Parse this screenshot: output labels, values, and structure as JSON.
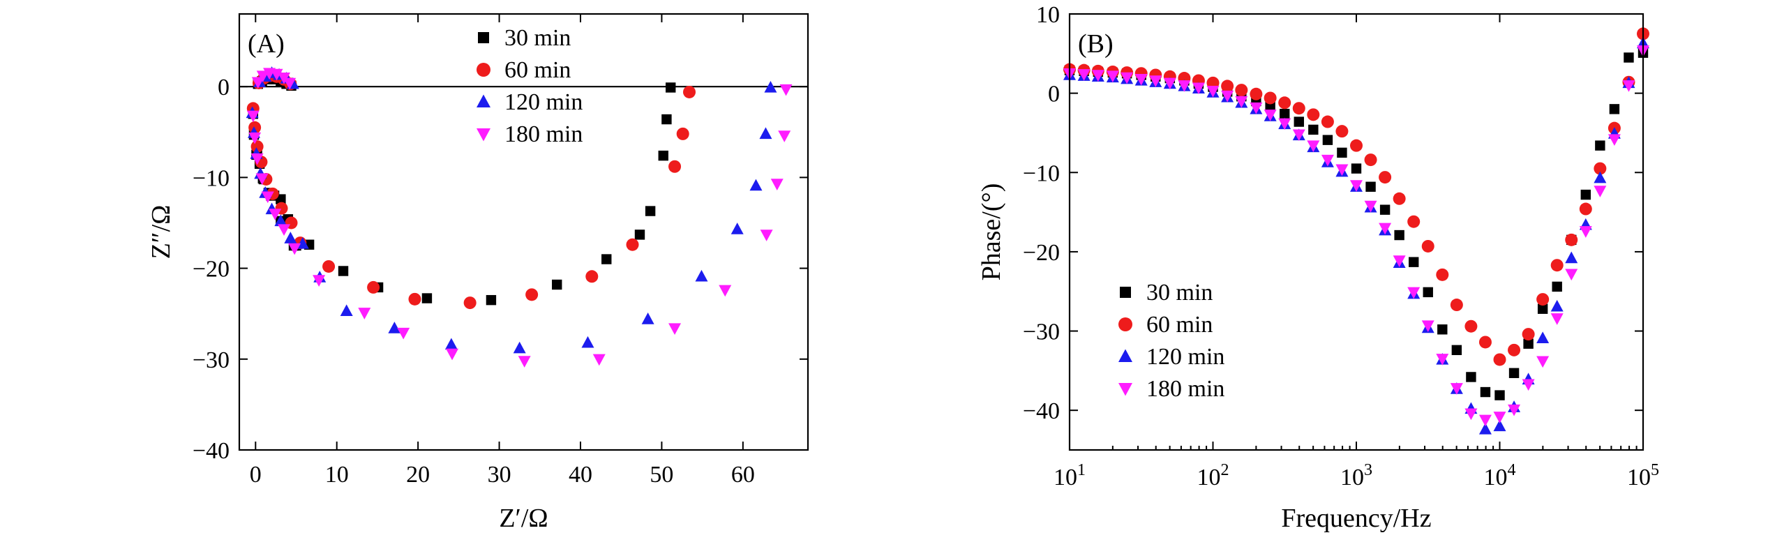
{
  "chart_data": [
    {
      "type": "scatter",
      "panel_label": "(A)",
      "title": "",
      "xlabel": "Z′/Ω",
      "ylabel": "Z″/Ω",
      "xlim": [
        -2,
        68
      ],
      "ylim": [
        -40,
        8
      ],
      "xticks": [
        0,
        10,
        20,
        30,
        40,
        50,
        60
      ],
      "xtick_labels": [
        "0",
        "10",
        "20",
        "30",
        "40",
        "50",
        "60"
      ],
      "yticks": [
        0,
        -10,
        -20,
        -30,
        -40
      ],
      "ytick_labels": [
        "0",
        "−10",
        "−20",
        "−30",
        "−40"
      ],
      "grid": false,
      "zero_line": true,
      "legend_position": "top-center",
      "series": [
        {
          "name": "30 min",
          "color": "#000000",
          "marker": "square",
          "x": [
            -0.3,
            -0.2,
            0.1,
            0.5,
            1.0,
            1.6,
            2.3,
            3.1,
            4.0,
            5.0,
            0.3,
            0.8,
            1.5,
            2.3,
            3.1,
            3.8,
            4.4,
            0.2,
            0.9,
            1.9,
            3.1,
            4.7,
            6.6,
            10.8,
            15.1,
            21.1,
            29.0,
            37.1,
            43.2,
            47.3,
            48.6,
            50.2,
            50.6,
            51.1
          ],
          "y": [
            -3.0,
            -5.3,
            -7.5,
            -8.5,
            -10.2,
            -11.7,
            -12.0,
            -12.4,
            -14.6,
            -17.5,
            0.3,
            0.6,
            0.8,
            0.8,
            0.6,
            0.3,
            0.1,
            -6.8,
            -10.1,
            -12.0,
            -14.8,
            -17.5,
            -17.4,
            -20.3,
            -22.1,
            -23.3,
            -23.5,
            -21.8,
            -19.0,
            -16.3,
            -13.7,
            -7.6,
            -3.6,
            -0.1
          ]
        },
        {
          "name": "60 min",
          "color": "#ee1c1c",
          "marker": "circle",
          "x": [
            -0.3,
            -0.1,
            0.2,
            0.7,
            1.3,
            2.1,
            3.2,
            4.4,
            5.5,
            0.4,
            1.0,
            1.8,
            2.6,
            3.5,
            4.3,
            9.0,
            14.5,
            19.6,
            26.4,
            34.0,
            41.4,
            46.4,
            51.6,
            52.6,
            53.4
          ],
          "y": [
            -2.4,
            -4.5,
            -6.6,
            -8.3,
            -10.2,
            -11.8,
            -13.4,
            -15.0,
            -17.2,
            0.4,
            0.9,
            1.2,
            1.1,
            0.8,
            0.3,
            -19.8,
            -22.1,
            -23.4,
            -23.8,
            -22.9,
            -20.9,
            -17.4,
            -8.8,
            -5.2,
            -0.6
          ]
        },
        {
          "name": "120 min",
          "color": "#1c1cee",
          "marker": "triangle-up",
          "x": [
            -0.4,
            -0.2,
            0.1,
            0.6,
            1.2,
            2.0,
            3.1,
            4.3,
            5.8,
            0.5,
            1.2,
            2.0,
            2.9,
            3.8,
            4.6,
            7.9,
            11.2,
            17.1,
            24.1,
            32.5,
            40.9,
            48.3,
            54.9,
            59.3,
            61.6,
            62.8,
            63.4
          ],
          "y": [
            -2.9,
            -5.1,
            -7.4,
            -9.6,
            -11.7,
            -13.5,
            -14.8,
            -16.7,
            -17.3,
            0.5,
            1.1,
            1.5,
            1.3,
            0.9,
            0.3,
            -21.0,
            -24.7,
            -26.6,
            -28.4,
            -28.8,
            -28.2,
            -25.6,
            -20.9,
            -15.7,
            -10.9,
            -5.2,
            -0.1
          ]
        },
        {
          "name": "180 min",
          "color": "#ff1cff",
          "marker": "triangle-down",
          "x": [
            -0.3,
            -0.1,
            0.2,
            0.8,
            1.5,
            2.4,
            3.5,
            4.8,
            0.3,
            0.9,
            1.7,
            2.6,
            3.5,
            4.2,
            7.8,
            13.4,
            18.2,
            24.2,
            33.1,
            42.3,
            51.6,
            57.8,
            62.9,
            64.2,
            65.1,
            65.3
          ],
          "y": [
            -3.2,
            -5.6,
            -7.9,
            -10.1,
            -12.1,
            -14.0,
            -15.7,
            -17.8,
            0.5,
            1.2,
            1.5,
            1.4,
            1.0,
            0.4,
            -21.3,
            -24.9,
            -27.1,
            -29.4,
            -30.2,
            -30.0,
            -26.6,
            -22.4,
            -16.3,
            -10.7,
            -5.4,
            -0.3
          ]
        }
      ]
    },
    {
      "type": "scatter",
      "panel_label": "(B)",
      "title": "",
      "xlabel": "Frequency/Hz",
      "ylabel": "Phase/(°)",
      "xscale": "log",
      "xlim": [
        10,
        100000
      ],
      "ylim": [
        -45,
        10
      ],
      "xticks": [
        10,
        100,
        1000,
        10000,
        100000
      ],
      "xtick_labels": [
        "10^1",
        "10^2",
        "10^3",
        "10^4",
        "10^5"
      ],
      "yticks": [
        10,
        0,
        -10,
        -20,
        -30,
        -40
      ],
      "ytick_labels": [
        "10",
        "0",
        "−10",
        "−20",
        "−30",
        "−40"
      ],
      "grid": false,
      "legend_position": "bottom-left",
      "series": [
        {
          "name": "30 min",
          "color": "#000000",
          "marker": "square",
          "x": [
            10,
            12.6,
            15.8,
            20,
            25.1,
            31.6,
            39.8,
            50.1,
            63.1,
            79.4,
            100,
            126,
            158,
            200,
            251,
            316,
            398,
            501,
            631,
            794,
            1000,
            1259,
            1585,
            1995,
            2512,
            3162,
            3981,
            5012,
            6310,
            7943,
            10000,
            12589,
            15849,
            19953,
            25119,
            31623,
            39811,
            50119,
            63096,
            79433,
            100000
          ],
          "y": [
            2.9,
            2.8,
            2.7,
            2.6,
            2.5,
            2.3,
            2.1,
            1.9,
            1.6,
            1.2,
            0.8,
            0.2,
            -0.4,
            -1.0,
            -1.7,
            -2.6,
            -3.6,
            -4.6,
            -5.9,
            -7.5,
            -9.5,
            -11.8,
            -14.7,
            -17.9,
            -21.3,
            -25.1,
            -29.8,
            -32.4,
            -35.8,
            -37.7,
            -38.1,
            -35.3,
            -31.6,
            -27.2,
            -24.4,
            -18.5,
            -12.8,
            -6.6,
            -2.0,
            4.5,
            5.1
          ]
        },
        {
          "name": "60 min",
          "color": "#ee1c1c",
          "marker": "circle",
          "x": [
            10,
            12.6,
            15.8,
            20,
            25.1,
            31.6,
            39.8,
            50.1,
            63.1,
            79.4,
            100,
            126,
            158,
            200,
            251,
            316,
            398,
            501,
            631,
            794,
            1000,
            1259,
            1585,
            1995,
            2512,
            3162,
            3981,
            5012,
            6310,
            7943,
            10000,
            12589,
            15849,
            19953,
            25119,
            31623,
            39811,
            50119,
            63096,
            79433,
            100000
          ],
          "y": [
            3.0,
            2.9,
            2.8,
            2.7,
            2.6,
            2.5,
            2.3,
            2.1,
            1.9,
            1.6,
            1.3,
            0.9,
            0.4,
            -0.1,
            -0.6,
            -1.2,
            -1.9,
            -2.7,
            -3.6,
            -4.8,
            -6.6,
            -8.4,
            -10.6,
            -13.3,
            -16.2,
            -19.3,
            -22.9,
            -26.7,
            -29.4,
            -31.4,
            -33.6,
            -32.4,
            -30.4,
            -26.0,
            -21.7,
            -18.5,
            -14.6,
            -9.5,
            -4.4,
            1.4,
            7.5
          ]
        },
        {
          "name": "120 min",
          "color": "#1c1cee",
          "marker": "triangle-up",
          "x": [
            10,
            12.6,
            15.8,
            20,
            25.1,
            31.6,
            39.8,
            50.1,
            63.1,
            79.4,
            100,
            126,
            158,
            200,
            251,
            316,
            398,
            501,
            631,
            794,
            1000,
            1259,
            1585,
            1995,
            2512,
            3162,
            3981,
            5012,
            6310,
            7943,
            10000,
            12589,
            15849,
            19953,
            25119,
            31623,
            39811,
            50119,
            63096,
            79433,
            100000
          ],
          "y": [
            2.3,
            2.2,
            2.1,
            2.0,
            1.8,
            1.6,
            1.4,
            1.2,
            0.9,
            0.6,
            0.1,
            -0.5,
            -1.2,
            -2.0,
            -2.9,
            -3.9,
            -5.3,
            -6.8,
            -8.7,
            -9.9,
            -11.8,
            -14.4,
            -17.3,
            -21.4,
            -25.3,
            -29.6,
            -33.6,
            -37.3,
            -39.8,
            -42.4,
            -42.0,
            -39.6,
            -36.1,
            -30.9,
            -26.9,
            -20.8,
            -16.6,
            -10.7,
            -5.1,
            1.3,
            6.3
          ]
        },
        {
          "name": "180 min",
          "color": "#ff1cff",
          "marker": "triangle-down",
          "x": [
            10,
            12.6,
            15.8,
            20,
            25.1,
            31.6,
            39.8,
            50.1,
            63.1,
            79.4,
            100,
            126,
            158,
            200,
            251,
            316,
            398,
            501,
            631,
            794,
            1000,
            1259,
            1585,
            1995,
            2512,
            3162,
            3981,
            5012,
            6310,
            7943,
            10000,
            12589,
            15849,
            19953,
            25119,
            31623,
            39811,
            50119,
            63096,
            79433,
            100000
          ],
          "y": [
            2.5,
            2.4,
            2.3,
            2.2,
            2.0,
            1.8,
            1.6,
            1.3,
            1.0,
            0.7,
            0.3,
            -0.3,
            -1.0,
            -1.8,
            -2.7,
            -3.8,
            -5.2,
            -6.6,
            -8.4,
            -9.6,
            -11.6,
            -14.2,
            -17.0,
            -21.1,
            -25.1,
            -29.3,
            -33.5,
            -37.2,
            -40.4,
            -41.2,
            -40.8,
            -39.9,
            -36.7,
            -33.8,
            -28.4,
            -22.8,
            -17.4,
            -12.3,
            -5.8,
            1.0,
            5.4
          ]
        }
      ]
    }
  ]
}
